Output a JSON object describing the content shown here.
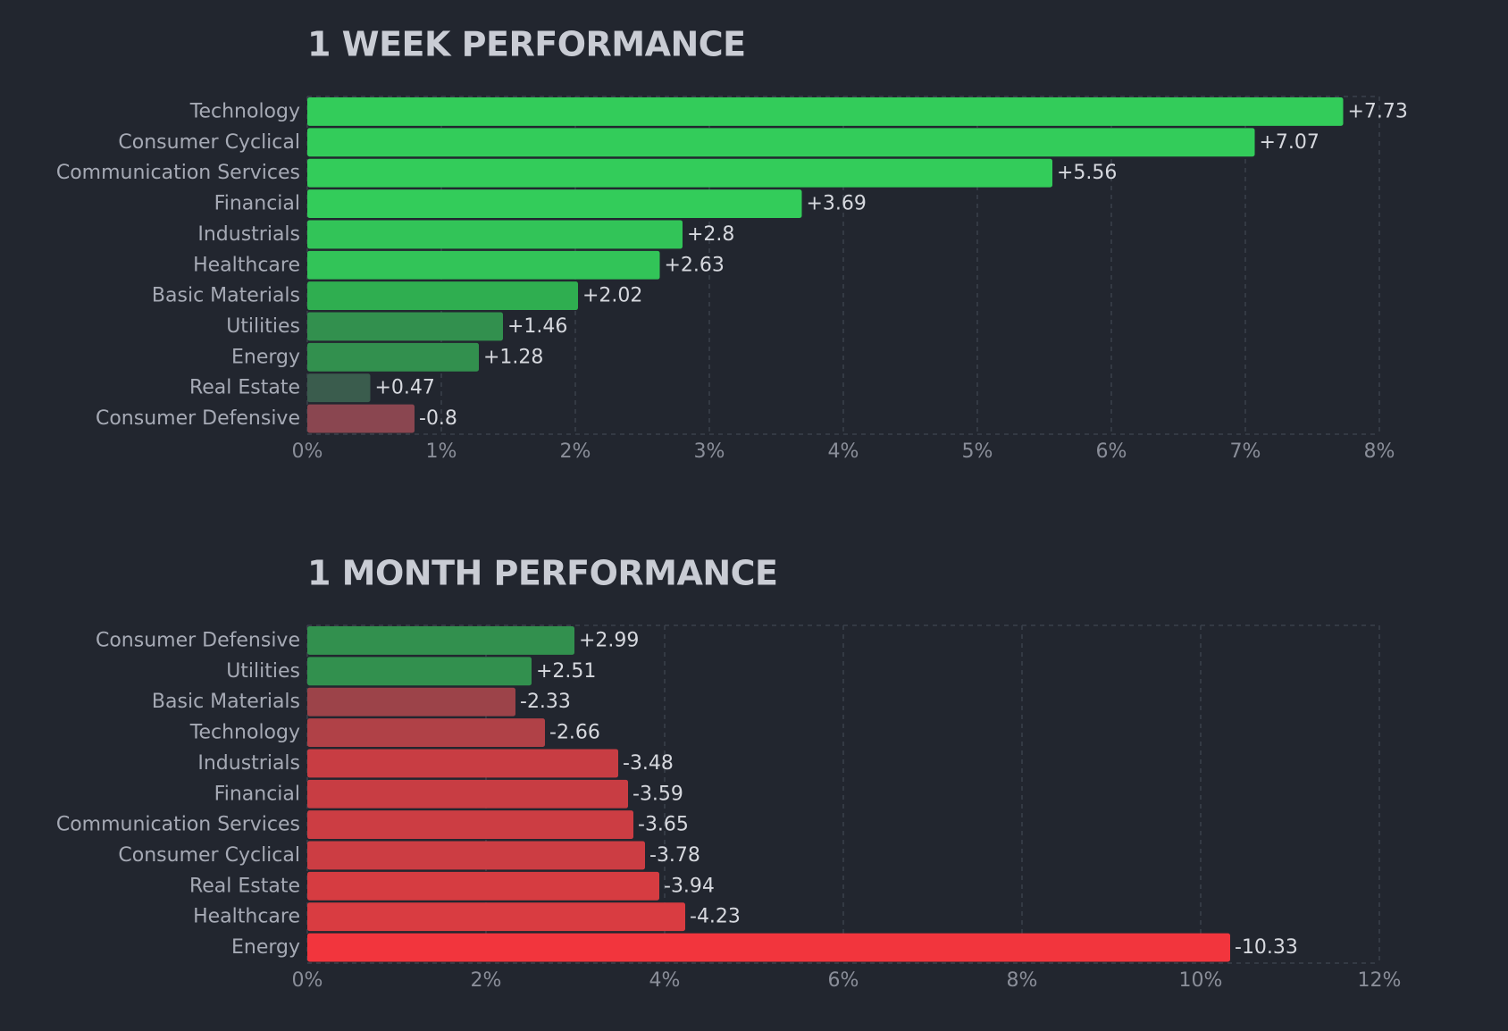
{
  "chart_data": [
    {
      "type": "bar",
      "orientation": "horizontal",
      "title": "1 WEEK PERFORMANCE",
      "categories": [
        "Technology",
        "Consumer Cyclical",
        "Communication Services",
        "Financial",
        "Industrials",
        "Healthcare",
        "Basic Materials",
        "Utilities",
        "Energy",
        "Real Estate",
        "Consumer Defensive"
      ],
      "values": [
        7.73,
        7.07,
        5.56,
        3.69,
        2.8,
        2.63,
        2.02,
        1.46,
        1.28,
        0.47,
        -0.8
      ],
      "value_labels": [
        "+7.73",
        "+7.07",
        "+5.56",
        "+3.69",
        "+2.8",
        "+2.63",
        "+2.02",
        "+1.46",
        "+1.28",
        "+0.47",
        "-0.8"
      ],
      "colors": [
        "#33cc5a",
        "#33cc5a",
        "#33cc5a",
        "#33cc5a",
        "#32c458",
        "#32c458",
        "#2fae50",
        "#32904e",
        "#32904e",
        "#3a5c4d",
        "#8a4650"
      ],
      "x_ticks": [
        "0%",
        "1%",
        "2%",
        "3%",
        "4%",
        "5%",
        "6%",
        "7%",
        "8%"
      ],
      "xlim": [
        0,
        8
      ],
      "bar_length": "absolute value",
      "grid": true
    },
    {
      "type": "bar",
      "orientation": "horizontal",
      "title": "1 MONTH PERFORMANCE",
      "categories": [
        "Consumer Defensive",
        "Utilities",
        "Basic Materials",
        "Technology",
        "Industrials",
        "Financial",
        "Communication Services",
        "Consumer Cyclical",
        "Real Estate",
        "Healthcare",
        "Energy"
      ],
      "values": [
        2.99,
        2.51,
        -2.33,
        -2.66,
        -3.48,
        -3.59,
        -3.65,
        -3.78,
        -3.94,
        -4.23,
        -10.33
      ],
      "value_labels": [
        "+2.99",
        "+2.51",
        "-2.33",
        "-2.66",
        "-3.48",
        "-3.59",
        "-3.65",
        "-3.78",
        "-3.94",
        "-4.23",
        "-10.33"
      ],
      "colors": [
        "#32904e",
        "#32904e",
        "#9c4349",
        "#b04147",
        "#c83d43",
        "#c83d43",
        "#cc3d43",
        "#cc3d43",
        "#d63c41",
        "#d93c41",
        "#f2353d"
      ],
      "x_ticks": [
        "0%",
        "2%",
        "4%",
        "6%",
        "8%",
        "10%",
        "12%"
      ],
      "xlim": [
        0,
        12
      ],
      "bar_length": "absolute value",
      "grid": true
    }
  ]
}
